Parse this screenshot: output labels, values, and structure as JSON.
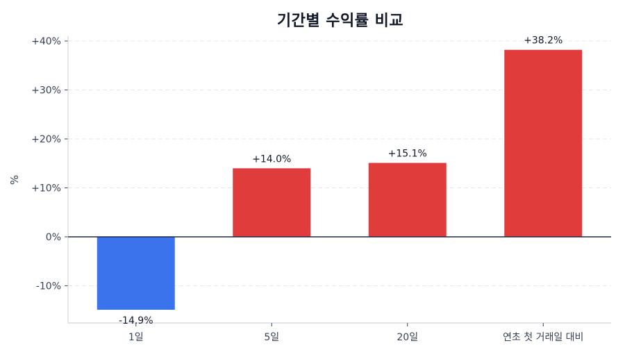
{
  "chart_data": {
    "type": "bar",
    "title": "기간별 수익률 비교",
    "xlabel": "",
    "ylabel": "%",
    "categories": [
      "1일",
      "5일",
      "20일",
      "연초 첫 거래일 대비"
    ],
    "values": [
      -14.9,
      14.0,
      15.1,
      38.2
    ],
    "value_labels": [
      "-14.9%",
      "+14.0%",
      "+15.1%",
      "+38.2%"
    ],
    "bar_colors": [
      "#3b73ec",
      "#e03c3c",
      "#e03c3c",
      "#e03c3c"
    ],
    "ylim": [
      -17.6,
      41
    ],
    "yticks": [
      -10,
      0,
      10,
      20,
      30,
      40
    ],
    "ytick_labels": [
      "-10%",
      "0%",
      "+10%",
      "+20%",
      "+30%",
      "+40%"
    ],
    "grid": "horizontal dashed",
    "zero_line": true,
    "legend": null
  },
  "colors": {
    "positive": "#e03c3c",
    "negative": "#3b73ec",
    "zero_line": "#1f2a44",
    "grid": "#e5e7eb",
    "axis": "#d1d5db"
  }
}
